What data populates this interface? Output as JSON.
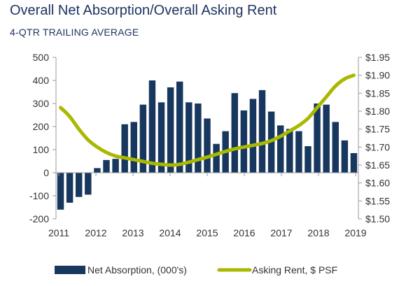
{
  "chart_data": {
    "type": "bar+line",
    "title": "Overall Net Absorption/Overall Asking Rent",
    "subtitle": "4-QTR TRAILING AVERAGE",
    "x_labels": [
      "2011",
      "2012",
      "2013",
      "2014",
      "2015",
      "2016",
      "2017",
      "2018",
      "2019"
    ],
    "y_left": {
      "min": -200,
      "max": 500,
      "step": 100,
      "ticks": [
        "-200",
        "-100",
        "0",
        "100",
        "200",
        "300",
        "400",
        "500"
      ]
    },
    "y_right": {
      "min": 1.5,
      "max": 1.95,
      "step": 0.05,
      "ticks": [
        "$1.50",
        "$1.55",
        "$1.60",
        "$1.65",
        "$1.70",
        "$1.75",
        "$1.80",
        "$1.85",
        "$1.90",
        "$1.95"
      ]
    },
    "series": [
      {
        "name": "Net Absorption, (000's)",
        "type": "bar",
        "axis": "left",
        "color": "#17375e",
        "values": [
          -160,
          -130,
          -105,
          -95,
          20,
          55,
          60,
          210,
          220,
          295,
          400,
          305,
          370,
          395,
          305,
          300,
          235,
          125,
          180,
          345,
          270,
          320,
          358,
          265,
          205,
          190,
          180,
          115,
          300,
          295,
          220,
          140,
          85
        ]
      },
      {
        "name": "Asking Rent, $ PSF",
        "type": "line",
        "axis": "right",
        "color": "#a9b800",
        "values": [
          1.81,
          1.785,
          1.75,
          1.72,
          1.7,
          1.685,
          1.675,
          1.67,
          1.665,
          1.66,
          1.655,
          1.652,
          1.65,
          1.652,
          1.658,
          1.665,
          1.672,
          1.68,
          1.688,
          1.695,
          1.7,
          1.705,
          1.71,
          1.718,
          1.73,
          1.745,
          1.76,
          1.78,
          1.81,
          1.84,
          1.87,
          1.89,
          1.9
        ]
      }
    ],
    "grid": false,
    "legend_position": "bottom"
  }
}
